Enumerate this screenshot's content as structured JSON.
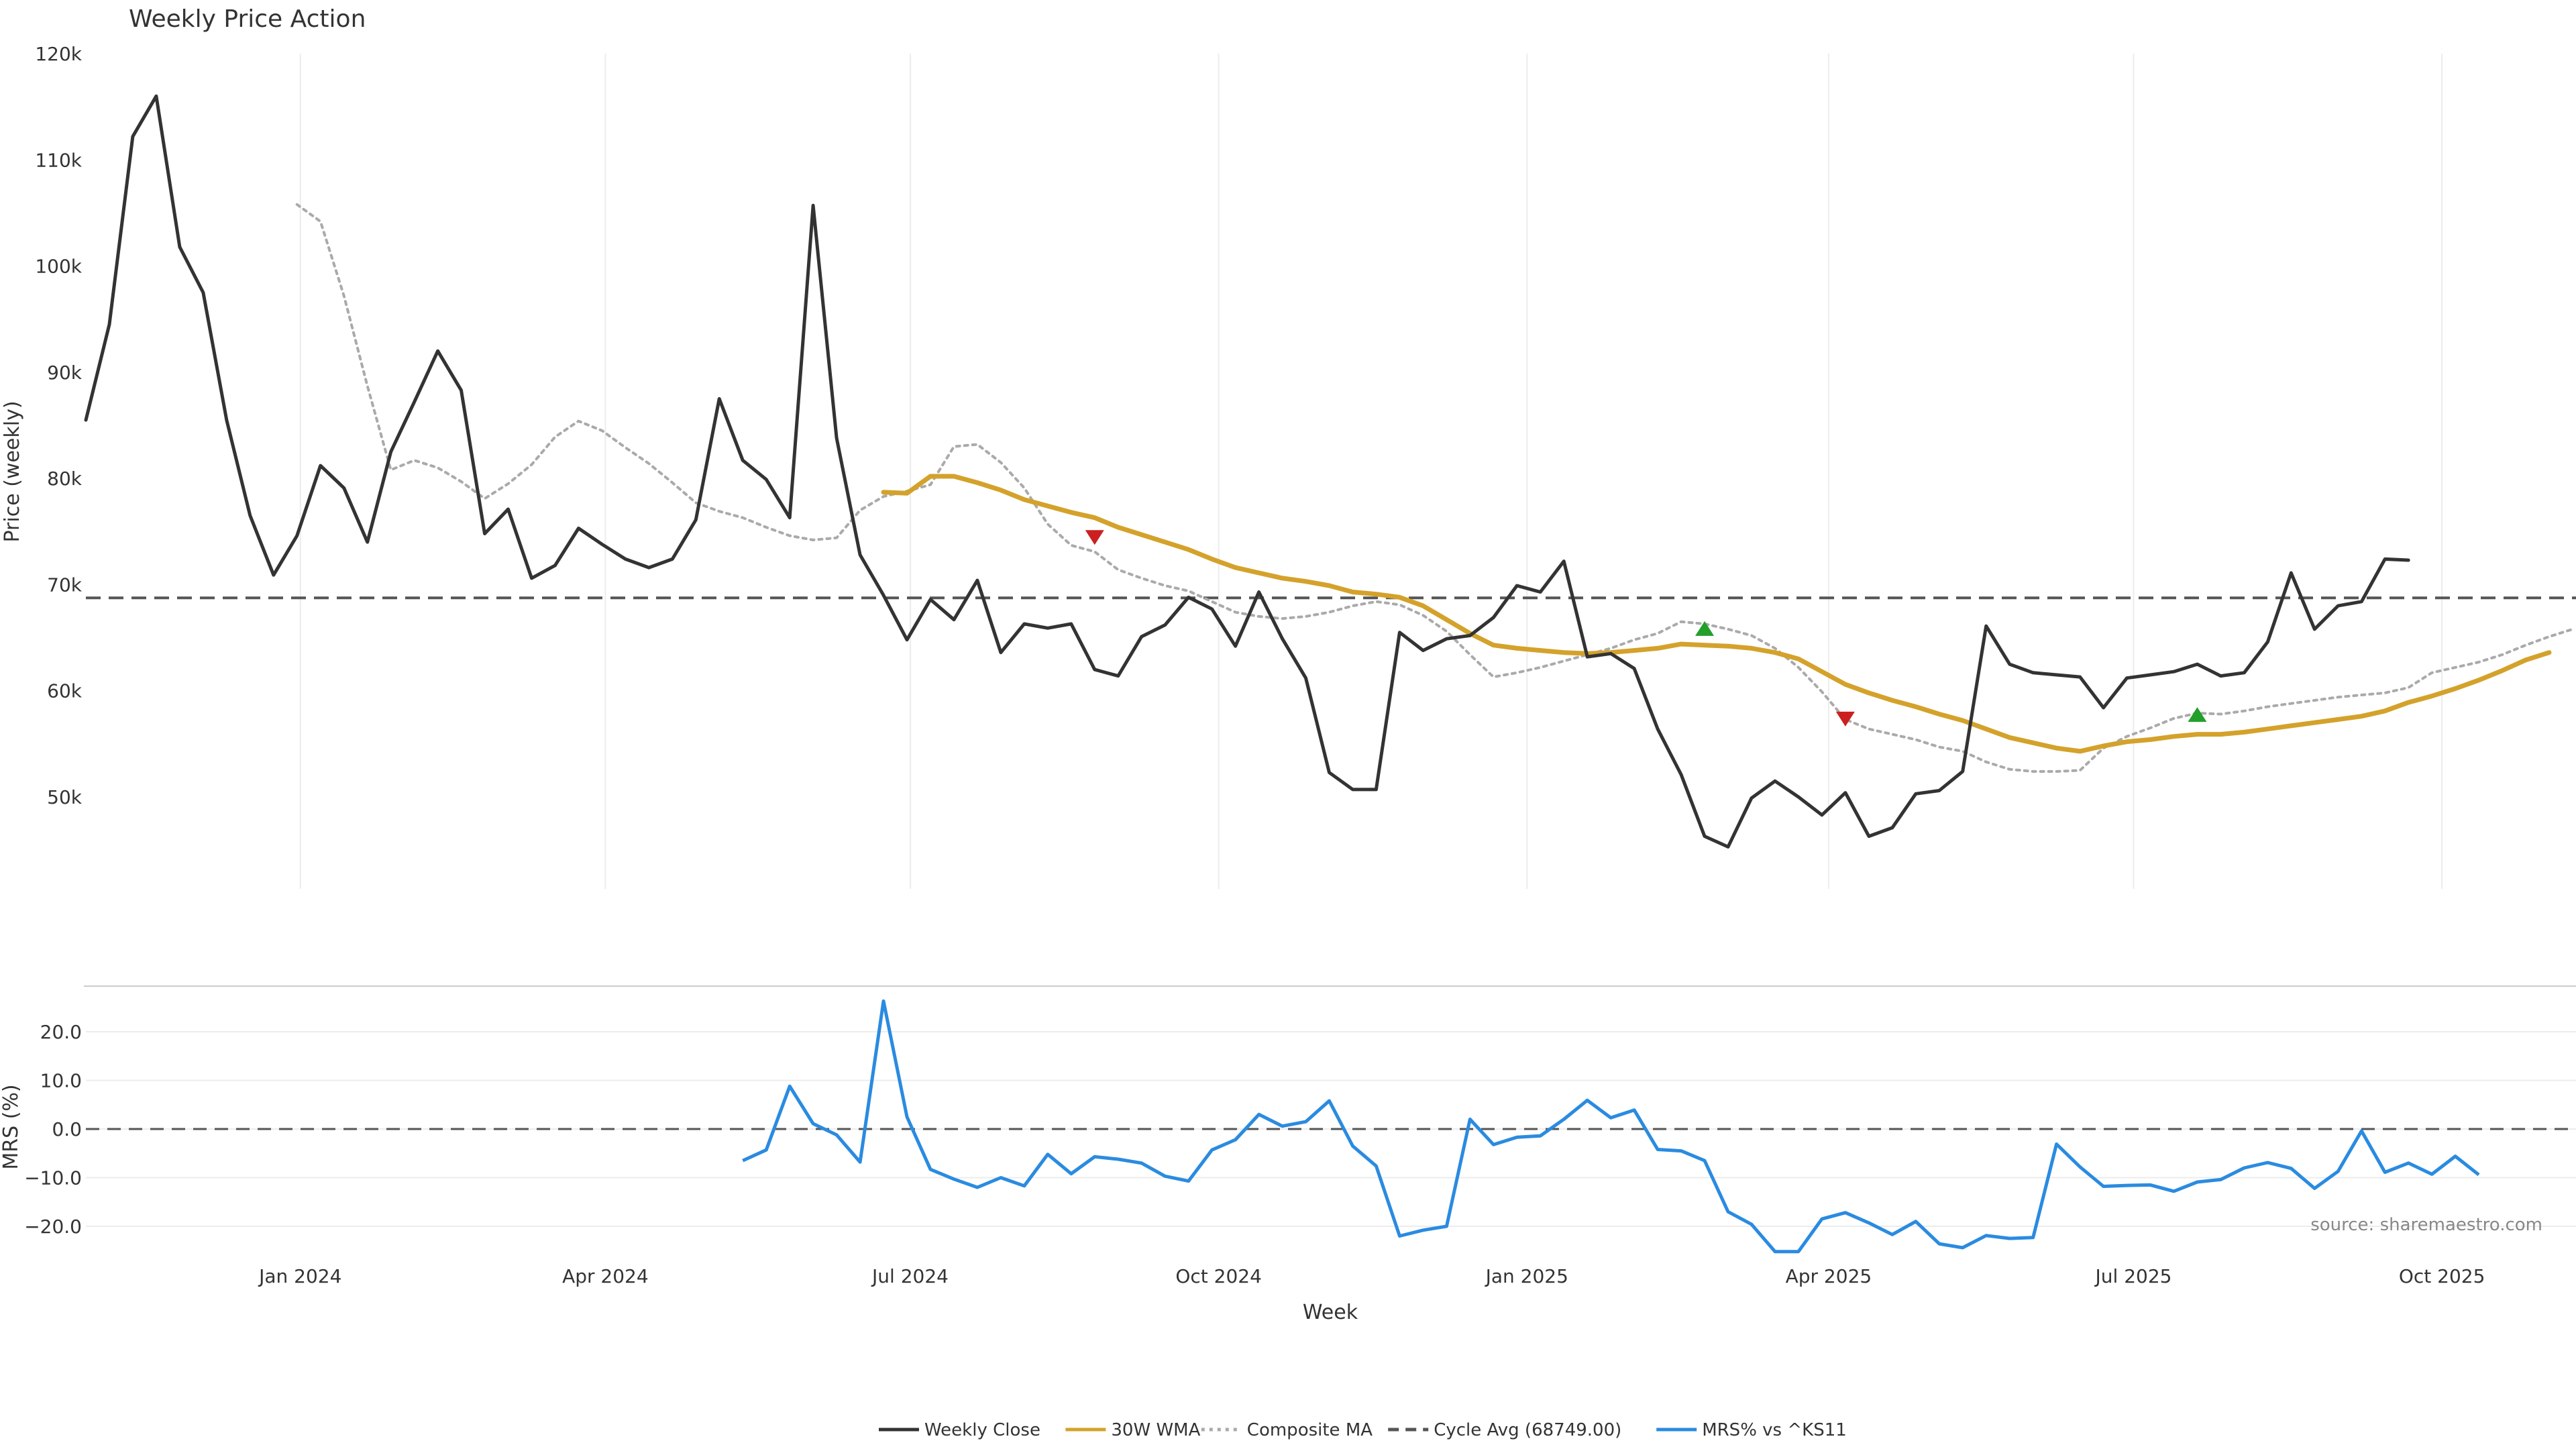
{
  "chart_data": [
    {
      "type": "line",
      "title": "Weekly Price Action",
      "ylabel": "Price (weekly)",
      "xlabel": "Week",
      "ylim": [
        40000,
        120000
      ],
      "yticks": [
        50000,
        60000,
        70000,
        80000,
        90000,
        100000,
        110000,
        120000
      ],
      "ytick_labels": [
        "50k",
        "60k",
        "70k",
        "80k",
        "90k",
        "100k",
        "110k",
        "120k"
      ],
      "x_dates": [
        "2023-10-29",
        "2023-11-05",
        "2023-11-12",
        "2023-11-19",
        "2023-11-26",
        "2023-12-03",
        "2023-12-10",
        "2023-12-17",
        "2023-12-24",
        "2023-12-31",
        "2024-01-07",
        "2024-01-14",
        "2024-01-21",
        "2024-01-28",
        "2024-02-04",
        "2024-02-11",
        "2024-02-18",
        "2024-02-25",
        "2024-03-03",
        "2024-03-10",
        "2024-03-17",
        "2024-03-24",
        "2024-03-31",
        "2024-04-07",
        "2024-04-14",
        "2024-04-21",
        "2024-04-28",
        "2024-05-05",
        "2024-05-12",
        "2024-05-19",
        "2024-05-26",
        "2024-06-02",
        "2024-06-09",
        "2024-06-16",
        "2024-06-23",
        "2024-06-30",
        "2024-07-07",
        "2024-07-14",
        "2024-07-21",
        "2024-07-28",
        "2024-08-04",
        "2024-08-11",
        "2024-08-18",
        "2024-08-25",
        "2024-09-01",
        "2024-09-08",
        "2024-09-15",
        "2024-09-22",
        "2024-09-29",
        "2024-10-06",
        "2024-10-13",
        "2024-10-20",
        "2024-10-27",
        "2024-11-03",
        "2024-11-10",
        "2024-11-17",
        "2024-11-24",
        "2024-12-01",
        "2024-12-08",
        "2024-12-15",
        "2024-12-22",
        "2024-12-29",
        "2025-01-05",
        "2025-01-12",
        "2025-01-19",
        "2025-01-26",
        "2025-02-02",
        "2025-02-09",
        "2025-02-16",
        "2025-02-23",
        "2025-03-02",
        "2025-03-09",
        "2025-03-16",
        "2025-03-23",
        "2025-03-30",
        "2025-04-06",
        "2025-04-13",
        "2025-04-20",
        "2025-04-27",
        "2025-05-04",
        "2025-05-11",
        "2025-05-18",
        "2025-05-25",
        "2025-06-01",
        "2025-06-08",
        "2025-06-15",
        "2025-06-22",
        "2025-06-29",
        "2025-07-06",
        "2025-07-13",
        "2025-07-20",
        "2025-07-27",
        "2025-08-03",
        "2025-08-10",
        "2025-08-17",
        "2025-08-24",
        "2025-08-31",
        "2025-09-07",
        "2025-09-14",
        "2025-09-21",
        "2025-09-28",
        "2025-10-05",
        "2025-10-12",
        "2025-10-19",
        "2025-10-26",
        "2025-11-02",
        "2025-11-09"
      ],
      "xtick_labels": [
        "Jan 2024",
        "Apr 2024",
        "Jul 2024",
        "Oct 2024",
        "Jan 2025",
        "Apr 2025",
        "Jul 2025",
        "Oct 2025"
      ],
      "xtick_dates": [
        "2024-01-01",
        "2024-04-01",
        "2024-07-01",
        "2024-10-01",
        "2025-01-01",
        "2025-04-01",
        "2025-07-01",
        "2025-10-01"
      ],
      "grid": true,
      "series": [
        {
          "name": "Weekly Close",
          "color": "#333333",
          "values": [
            85500,
            94500,
            112200,
            116000,
            101800,
            97500,
            85500,
            76500,
            70900,
            74600,
            81200,
            79100,
            74000,
            82500,
            87200,
            92000,
            88300,
            74800,
            77100,
            70600,
            71800,
            75300,
            73800,
            72400,
            71600,
            72400,
            76100,
            87500,
            81700,
            79900,
            76300,
            105700,
            83800,
            72800,
            69000,
            64800,
            68600,
            66700,
            70400,
            63600,
            66300,
            65900,
            66300,
            62000,
            61400,
            65100,
            66200,
            68800,
            67700,
            64200,
            69300,
            64900,
            61200,
            52300,
            50700,
            50700,
            65500,
            63800,
            64900,
            65200,
            66900,
            69900,
            69300,
            72200,
            63200,
            63500,
            62100,
            56400,
            52100,
            46300,
            45300,
            49900,
            51500,
            50000,
            48300,
            50400,
            46300,
            47100,
            50300,
            50600,
            52400,
            66100,
            62500,
            61700,
            61500,
            61300,
            58400,
            61200,
            61500,
            61800,
            62500,
            61400,
            61700,
            64600,
            71100,
            65800,
            68000,
            68400,
            72400,
            72300,
            null
          ],
          "start_index": 0
        },
        {
          "name": "30W WMA",
          "color": "#d4a22b",
          "values": [
            78700,
            78600,
            80200,
            80200,
            79600,
            78900,
            78000,
            77400,
            76800,
            76300,
            75400,
            74700,
            74000,
            73300,
            72400,
            71600,
            71100,
            70600,
            70300,
            69900,
            69300,
            69100,
            68800,
            68000,
            66700,
            65400,
            64300,
            64000,
            63800,
            63600,
            63500,
            63600,
            63800,
            64000,
            64400,
            64300,
            64200,
            64000,
            63600,
            63000,
            61800,
            60600,
            59800,
            59100,
            58500,
            57800,
            57200,
            56400,
            55600,
            55100,
            54600,
            54300,
            54800,
            55200,
            55400,
            55700,
            55900,
            55900,
            56100,
            56400,
            56700,
            57000,
            57300,
            57600,
            58100,
            58900,
            59500,
            60200,
            61000,
            61900,
            62900,
            63600
          ],
          "start_index": 34
        },
        {
          "name": "Composite MA",
          "color": "#aaaaaa",
          "values": [
            105800,
            104200,
            97200,
            88700,
            80800,
            81700,
            81000,
            79700,
            78100,
            79500,
            81300,
            83900,
            85400,
            84500,
            82900,
            81400,
            79600,
            77700,
            76900,
            76300,
            75400,
            74600,
            74200,
            74400,
            77000,
            78300,
            78800,
            79400,
            83000,
            83200,
            81500,
            79100,
            75700,
            73700,
            73100,
            71400,
            70600,
            69900,
            69400,
            68400,
            67400,
            67000,
            66800,
            67000,
            67400,
            68000,
            68400,
            68100,
            67100,
            65600,
            63400,
            61300,
            61700,
            62200,
            62800,
            63400,
            64000,
            64800,
            65400,
            66500,
            66300,
            65800,
            65200,
            64000,
            62200,
            59900,
            57300,
            56400,
            55900,
            55400,
            54700,
            54300,
            53300,
            52600,
            52400,
            52400,
            52500,
            54600,
            55700,
            56500,
            57400,
            57900,
            57800,
            58100,
            58500,
            58800,
            59100,
            59400,
            59600,
            59800,
            60300,
            61700,
            62200,
            62700,
            63400,
            64300,
            65100,
            65800
          ],
          "start_index": 9
        },
        {
          "name": "Cycle Avg (68749.00)",
          "color": "#555555",
          "values": [
            68749
          ]
        }
      ],
      "markers": [
        {
          "date": "2024-08-25",
          "value": 74500,
          "symbol": "down",
          "color": "#cc1f1f"
        },
        {
          "date": "2025-02-23",
          "value": 65800,
          "symbol": "up",
          "color": "#22a02a"
        },
        {
          "date": "2025-04-06",
          "value": 57400,
          "symbol": "down",
          "color": "#cc1f1f"
        },
        {
          "date": "2025-07-20",
          "value": 57700,
          "symbol": "up",
          "color": "#22a02a"
        }
      ]
    },
    {
      "type": "line",
      "ylabel": "MRS (%)",
      "xlabel": "Week",
      "ylim": [
        -25,
        28
      ],
      "yticks": [
        -20,
        -10,
        0,
        10,
        20
      ],
      "ytick_labels": [
        "−20.0",
        "−10.0",
        "0.0",
        "10.0",
        "20.0"
      ],
      "grid": true,
      "series": [
        {
          "name": "MRS% vs ^KS11",
          "color": "#2a8be0",
          "values": [
            -6.5,
            -4.3,
            8.8,
            1.1,
            -1.2,
            -6.8,
            26.3,
            2.5,
            -8.3,
            -10.3,
            -12.0,
            -10.0,
            -11.7,
            -5.2,
            -9.2,
            -5.7,
            -6.2,
            -7.0,
            -9.7,
            -10.7,
            -4.3,
            -2.2,
            3.0,
            0.6,
            1.5,
            5.8,
            -3.5,
            -7.6,
            -22.0,
            -20.8,
            -20.0,
            2.0,
            -3.2,
            -1.7,
            -1.4,
            2.0,
            5.9,
            2.3,
            3.9,
            -4.2,
            -4.5,
            -6.5,
            -17.0,
            -19.6,
            -25.2,
            -25.2,
            -18.5,
            -17.2,
            -19.3,
            -21.7,
            -19.0,
            -23.6,
            -24.4,
            -21.9,
            -22.5,
            -22.3,
            -3.1,
            -7.8,
            -11.8,
            -11.6,
            -11.5,
            -12.8,
            -10.9,
            -10.4,
            -8.0,
            -6.9,
            -8.1,
            -12.2,
            -8.7,
            -0.4,
            -8.9,
            -7.0,
            -9.3,
            -5.6,
            -9.4
          ],
          "start_date": "2024-05-12"
        },
        {
          "name": "zero",
          "color": "#555555",
          "values": [
            0
          ]
        }
      ]
    }
  ],
  "legend": {
    "placement": "bottom-center",
    "items": [
      {
        "label": "Weekly Close",
        "color": "#333333",
        "style": "solid"
      },
      {
        "label": "30W WMA",
        "color": "#d4a22b",
        "style": "solid"
      },
      {
        "label": "Composite MA",
        "color": "#aaaaaa",
        "style": "dotted"
      },
      {
        "label": "Cycle Avg (68749.00)",
        "color": "#555555",
        "style": "dashed"
      },
      {
        "label": "MRS% vs ^KS11",
        "color": "#2a8be0",
        "style": "solid"
      }
    ]
  },
  "source_note": "source: sharemaestro.com"
}
